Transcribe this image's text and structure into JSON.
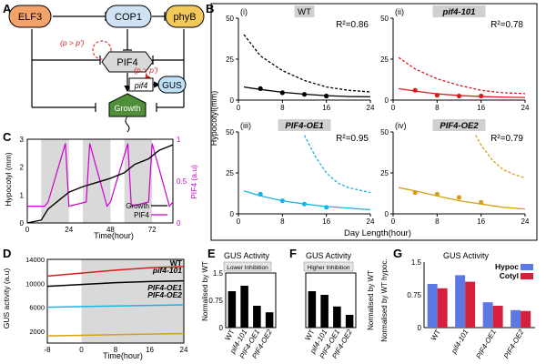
{
  "panel_labels": {
    "A": "A",
    "B": "B",
    "C": "C",
    "D": "D",
    "E": "E",
    "F": "F",
    "G": "G"
  },
  "diagram_a": {
    "nodes": {
      "elf3": "ELF3",
      "cop1": "COP1",
      "phyb": "phyB",
      "pif4": "PIF4",
      "pif4_gene": "pif4",
      "gus": "GUS",
      "growth": "Growth"
    },
    "annotations": {
      "p_left": "(p > p')",
      "p_right": "(p > p')"
    },
    "colors": {
      "elf3": "#f4a26a",
      "cop1": "#cfe3f5",
      "phyb": "#f3c95a",
      "pif4": "#d9d9d9",
      "gus": "#bfe0f5",
      "growth": "#4f8f3a",
      "red": "#d22222"
    }
  },
  "panel_b": {
    "ylabel": "Hypocotyl(mm)",
    "xlabel": "Day Length(hour)",
    "subpanels": [
      {
        "roman": "(i)",
        "name": "WT",
        "italic": false,
        "r2": "R²=0.86",
        "color": "#000000"
      },
      {
        "roman": "(ii)",
        "name": "pif4-101",
        "italic": true,
        "r2": "R²=0.78",
        "color": "#d71f1f"
      },
      {
        "roman": "(iii)",
        "name": "PIF4-OE1",
        "italic": true,
        "r2": "R²=0.95",
        "color": "#19b5e0"
      },
      {
        "roman": "(iv)",
        "name": "PIF4-OE2",
        "italic": true,
        "r2": "R²=0.79",
        "color": "#d4a017"
      }
    ],
    "yticks": [
      "0",
      "25",
      "50"
    ],
    "xticks": [
      "0",
      "8",
      "16",
      "24"
    ]
  },
  "panel_c": {
    "ylabel_left": "Hypocotyl (mm)",
    "ylabel_right": "PIF4 (a.u)",
    "xlabel": "Time(hour)",
    "yticks_left": [
      "0",
      "1",
      "2",
      "3"
    ],
    "yticks_right": [
      "0",
      "0.5",
      "1"
    ],
    "xticks": [
      "0",
      "24",
      "48",
      "72"
    ],
    "legend": {
      "growth": "Growth",
      "pif4": "PIF4"
    },
    "colors": {
      "growth": "#000000",
      "pif4": "#cc00cc"
    }
  },
  "panel_d": {
    "ylabel": "GUS activity (a.u)",
    "xlabel": "Time(hour)",
    "yticks": [
      "2000",
      "6000",
      "10000",
      "14000"
    ],
    "xticks": [
      "-8",
      "0",
      "8",
      "16",
      "24"
    ],
    "series_labels": {
      "wt": "WT",
      "pif4": "pif4-101",
      "oe1": "PIF4-OE1",
      "oe2": "PIF4-OE2"
    }
  },
  "panel_e": {
    "title": "GUS Activity",
    "subtitle": "Lower Inhibition"
  },
  "panel_f": {
    "title": "GUS Activity",
    "subtitle": "Higher Inhibition"
  },
  "panel_ef_ylabel": "Normalised by WT",
  "panel_ef_yticks": [
    "0",
    "0.75",
    "1.5"
  ],
  "panel_g": {
    "title": "GUS Activity",
    "ylabel": "Normalised by WT hypoc.",
    "yticks": [
      "0",
      "0.75",
      "1.5"
    ],
    "legend": {
      "hypoc": "Hypoc",
      "cotyl": "Cotyl"
    },
    "colors": {
      "hypoc": "#5b78e3",
      "cotyl": "#d61f3a"
    }
  },
  "chart_data": [
    {
      "type": "scatter",
      "title": "WT",
      "xlabel": "Day Length(hour)",
      "ylabel": "Hypocotyl(mm)",
      "xlim": [
        0,
        24
      ],
      "ylim": [
        0,
        50
      ],
      "points": {
        "x": [
          4,
          8,
          12,
          16
        ],
        "y": [
          7,
          4.5,
          3.5,
          2.5
        ]
      },
      "fit_curve_x": [
        1,
        4,
        8,
        12,
        16,
        20,
        24
      ],
      "fit_curve_y": [
        8,
        6.5,
        4.8,
        3.6,
        2.7,
        2.2,
        2
      ],
      "dashed_curve_y": [
        40,
        27,
        18,
        12,
        8,
        6,
        5
      ],
      "annotation": "R²=0.86"
    },
    {
      "type": "scatter",
      "title": "pif4-101",
      "xlabel": "Day Length(hour)",
      "ylabel": "Hypocotyl(mm)",
      "xlim": [
        0,
        24
      ],
      "ylim": [
        0,
        50
      ],
      "points": {
        "x": [
          4,
          8,
          12,
          16
        ],
        "y": [
          6,
          3,
          2.5,
          2.5
        ]
      },
      "fit_curve_x": [
        1,
        4,
        8,
        12,
        16,
        20,
        24
      ],
      "fit_curve_y": [
        7,
        5.5,
        3.8,
        2.8,
        2.2,
        1.8,
        1.6
      ],
      "dashed_curve_y": [
        26,
        19,
        13,
        9,
        6,
        4.5,
        4
      ],
      "annotation": "R²=0.78"
    },
    {
      "type": "scatter",
      "title": "PIF4-OE1",
      "xlabel": "Day Length(hour)",
      "ylabel": "Hypocotyl(mm)",
      "xlim": [
        0,
        24
      ],
      "ylim": [
        0,
        50
      ],
      "points": {
        "x": [
          4,
          8,
          12,
          16
        ],
        "y": [
          12,
          8,
          6,
          4
        ]
      },
      "fit_curve_x": [
        1,
        4,
        8,
        12,
        16,
        20,
        24
      ],
      "fit_curve_y": [
        14,
        11,
        8,
        6,
        4.5,
        3.5,
        2.5
      ],
      "dashed_curve_x": [
        12,
        14,
        16,
        18,
        20,
        24
      ],
      "dashed_curve_y": [
        48,
        35,
        25,
        19,
        16,
        13
      ],
      "annotation": "R²=0.95"
    },
    {
      "type": "scatter",
      "title": "PIF4-OE2",
      "xlabel": "Day Length(hour)",
      "ylabel": "Hypocotyl(mm)",
      "xlim": [
        0,
        24
      ],
      "ylim": [
        0,
        50
      ],
      "points": {
        "x": [
          4,
          8,
          12,
          16
        ],
        "y": [
          13,
          12,
          10,
          7
        ]
      },
      "fit_curve_x": [
        1,
        4,
        8,
        12,
        16,
        20,
        24
      ],
      "fit_curve_y": [
        16,
        14,
        11,
        8,
        6,
        4,
        3
      ],
      "dashed_curve_x": [
        15,
        16,
        18,
        20,
        22,
        24
      ],
      "dashed_curve_y": [
        48,
        42,
        33,
        27,
        24,
        22
      ],
      "annotation": "R²=0.79"
    },
    {
      "type": "line",
      "title": "",
      "xlabel": "Time(hour)",
      "ylabel": "Hypocotyl (mm)",
      "xlim": [
        0,
        84
      ],
      "ylim": [
        0,
        3
      ],
      "series": [
        {
          "name": "Growth",
          "x": [
            0,
            8,
            12,
            18,
            24,
            32,
            40,
            48,
            56,
            62,
            70,
            76,
            84
          ],
          "y": [
            0,
            0.1,
            0.5,
            0.8,
            1.1,
            1.3,
            1.45,
            1.6,
            1.8,
            2.1,
            2.3,
            2.6,
            2.8
          ]
        },
        {
          "name": "PIF4",
          "axis": "right",
          "x": [
            0,
            10,
            12,
            22,
            24,
            34,
            36,
            46,
            48,
            58,
            60,
            70,
            72,
            82,
            84
          ],
          "y": [
            0.2,
            0.2,
            0.25,
            0.95,
            0.2,
            0.25,
            0.95,
            0.2,
            0.25,
            0.95,
            0.2,
            0.25,
            0.95,
            0.2,
            0.25
          ]
        }
      ],
      "shaded_nights": [
        [
          8,
          24
        ],
        [
          32,
          48
        ],
        [
          56,
          72
        ]
      ]
    },
    {
      "type": "line",
      "title": "",
      "xlabel": "Time(hour)",
      "ylabel": "GUS activity (a.u)",
      "xlim": [
        -8,
        24
      ],
      "ylim": [
        0,
        14000
      ],
      "series": [
        {
          "name": "WT",
          "values": [
            9500,
            9800,
            10100,
            10300,
            10400
          ]
        },
        {
          "name": "pif4-101",
          "values": [
            11200,
            11700,
            12200,
            12600,
            12800
          ]
        },
        {
          "name": "PIF4-OE1",
          "values": [
            6000,
            6100,
            6200,
            6300,
            6400
          ]
        },
        {
          "name": "PIF4-OE2",
          "values": [
            1200,
            1300,
            1400,
            1500,
            1600
          ]
        }
      ],
      "x": [
        -8,
        0,
        8,
        16,
        24
      ],
      "shaded": [
        [
          0,
          24
        ]
      ]
    },
    {
      "type": "bar",
      "title": "GUS Activity - Lower Inhibition",
      "categories": [
        "WT",
        "pif4-101",
        "PIF4-OE1",
        "PIF4-OE2"
      ],
      "values": [
        1.0,
        1.15,
        0.6,
        0.42
      ],
      "ylim": [
        0,
        1.5
      ]
    },
    {
      "type": "bar",
      "title": "GUS Activity - Higher Inhibition",
      "categories": [
        "WT",
        "pif4-101",
        "PIF4-OE1",
        "PIF4-OE2"
      ],
      "values": [
        1.0,
        0.9,
        0.58,
        0.35
      ],
      "ylim": [
        0,
        1.5
      ]
    },
    {
      "type": "bar",
      "title": "GUS Activity",
      "categories": [
        "WT",
        "pif4-101",
        "PIF4-OE1",
        "PIF4-OE2"
      ],
      "series": [
        {
          "name": "Hypoc",
          "values": [
            1.0,
            1.2,
            0.58,
            0.4
          ]
        },
        {
          "name": "Cotyl",
          "values": [
            0.9,
            1.05,
            0.5,
            0.38
          ]
        }
      ],
      "ylim": [
        0,
        1.5
      ]
    }
  ]
}
